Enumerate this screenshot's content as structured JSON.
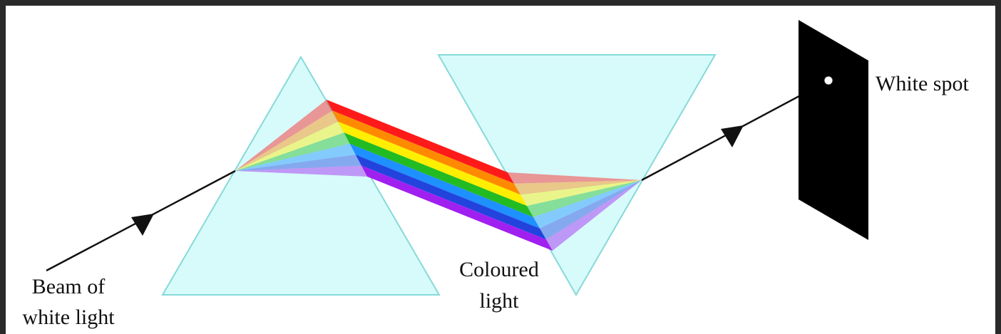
{
  "labels": {
    "beam": [
      "Beam of",
      "white light"
    ],
    "coloured": [
      "Coloured",
      "light"
    ],
    "spot": "White spot"
  }
}
